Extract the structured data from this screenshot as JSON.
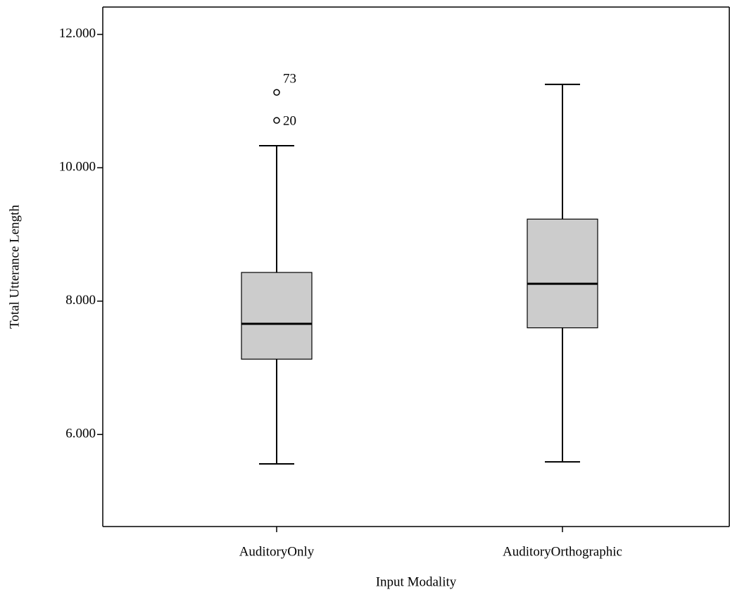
{
  "chart_data": {
    "type": "box",
    "xlabel": "Input Modality",
    "ylabel": "Total Utterance Length",
    "categories": [
      "AuditoryOnly",
      "AuditoryOrthographic"
    ],
    "color": "#cccccc",
    "ylim": [
      4.62,
      12.41
    ],
    "yticks": [
      {
        "value": 6,
        "label": "6.000"
      },
      {
        "value": 8,
        "label": "8.000"
      },
      {
        "value": 10,
        "label": "10.000"
      },
      {
        "value": 12,
        "label": "12.000"
      }
    ],
    "boxes": [
      {
        "whisker_low": 5.56,
        "q1": 7.13,
        "median": 7.66,
        "q3": 8.43,
        "whisker_high": 10.33,
        "outliers": [
          {
            "value": 11.13,
            "label": "73"
          },
          {
            "value": 10.71,
            "label": "20"
          }
        ]
      },
      {
        "whisker_low": 5.59,
        "q1": 7.6,
        "median": 8.26,
        "q3": 9.23,
        "whisker_high": 11.25,
        "outliers": []
      }
    ]
  }
}
